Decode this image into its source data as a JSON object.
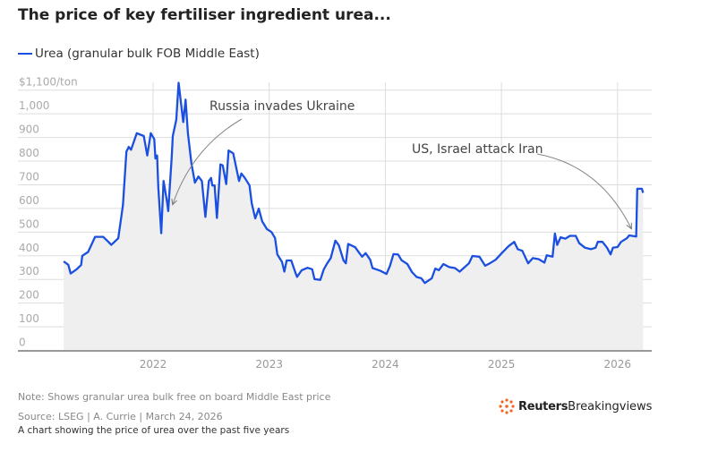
{
  "header": {
    "title": "The price of key fertiliser ingredient urea..."
  },
  "footer": {
    "note": "Note: Shows granular urea bulk free on board Middle East price",
    "source": "Source: LSEG | A. Currie | March 24, 2026",
    "caption": "A chart showing the price of urea over the past five years",
    "logo_bold": "Reuters",
    "logo_light": "Breakingviews"
  },
  "colors": {
    "line": "#1a4fe0",
    "fill": "#efefef",
    "grid": "#dddddd",
    "axis": "#999999",
    "logo": "#f26522"
  },
  "chart_data": {
    "type": "area",
    "title": "The price of key fertiliser ingredient urea...",
    "legend": [
      "Urea (granular bulk FOB Middle East)"
    ],
    "legend_position": "top-left",
    "xlabel": "",
    "ylabel": "$/ton",
    "ylim": [
      0,
      1100
    ],
    "xlim": [
      2021.0,
      2026.3
    ],
    "y_ticks": [
      0,
      100,
      200,
      300,
      400,
      500,
      600,
      700,
      800,
      900,
      1000,
      1100
    ],
    "y_tick_labels": [
      "0",
      "100",
      "200",
      "300",
      "400",
      "500",
      "600",
      "700",
      "800",
      "900",
      "1,000",
      "$1,100/ton"
    ],
    "x_ticks": [
      2022,
      2023,
      2024,
      2025,
      2026
    ],
    "x_tick_labels": [
      "2022",
      "2023",
      "2024",
      "2025",
      "2026"
    ],
    "grid": true,
    "annotations": [
      {
        "text": "Russia invades Ukraine",
        "x": 2022.16,
        "y": 617
      },
      {
        "text": "US, Israel attack Iran",
        "x": 2026.14,
        "y": 500
      }
    ],
    "series": [
      {
        "name": "Urea (granular bulk FOB Middle East)",
        "points": [
          [
            2021.23,
            376
          ],
          [
            2021.27,
            362
          ],
          [
            2021.29,
            325
          ],
          [
            2021.34,
            342
          ],
          [
            2021.38,
            361
          ],
          [
            2021.39,
            400
          ],
          [
            2021.44,
            416
          ],
          [
            2021.47,
            448
          ],
          [
            2021.5,
            480
          ],
          [
            2021.57,
            480
          ],
          [
            2021.61,
            461
          ],
          [
            2021.64,
            446
          ],
          [
            2021.7,
            474
          ],
          [
            2021.74,
            613
          ],
          [
            2021.77,
            840
          ],
          [
            2021.79,
            860
          ],
          [
            2021.81,
            848
          ],
          [
            2021.86,
            918
          ],
          [
            2021.92,
            906
          ],
          [
            2021.95,
            824
          ],
          [
            2021.98,
            918
          ],
          [
            2022.01,
            893
          ],
          [
            2022.02,
            811
          ],
          [
            2022.035,
            824
          ],
          [
            2022.045,
            691
          ],
          [
            2022.07,
            495
          ],
          [
            2022.09,
            716
          ],
          [
            2022.12,
            627
          ],
          [
            2022.13,
            589
          ],
          [
            2022.16,
            817
          ],
          [
            2022.17,
            906
          ],
          [
            2022.2,
            975
          ],
          [
            2022.22,
            1131
          ],
          [
            2022.26,
            965
          ],
          [
            2022.28,
            1060
          ],
          [
            2022.3,
            918
          ],
          [
            2022.33,
            791
          ],
          [
            2022.36,
            709
          ],
          [
            2022.39,
            735
          ],
          [
            2022.42,
            716
          ],
          [
            2022.45,
            564
          ],
          [
            2022.48,
            716
          ],
          [
            2022.5,
            729
          ],
          [
            2022.51,
            697
          ],
          [
            2022.53,
            697
          ],
          [
            2022.55,
            560
          ],
          [
            2022.58,
            786
          ],
          [
            2022.6,
            782
          ],
          [
            2022.63,
            703
          ],
          [
            2022.65,
            845
          ],
          [
            2022.69,
            833
          ],
          [
            2022.74,
            716
          ],
          [
            2022.76,
            748
          ],
          [
            2022.79,
            729
          ],
          [
            2022.83,
            697
          ],
          [
            2022.85,
            621
          ],
          [
            2022.88,
            558
          ],
          [
            2022.91,
            599
          ],
          [
            2022.94,
            545
          ],
          [
            2022.98,
            513
          ],
          [
            2023.02,
            500
          ],
          [
            2023.05,
            475
          ],
          [
            2023.07,
            405
          ],
          [
            2023.11,
            374
          ],
          [
            2023.13,
            333
          ],
          [
            2023.15,
            380
          ],
          [
            2023.19,
            380
          ],
          [
            2023.23,
            323
          ],
          [
            2023.24,
            311
          ],
          [
            2023.28,
            339
          ],
          [
            2023.33,
            349
          ],
          [
            2023.37,
            343
          ],
          [
            2023.39,
            301
          ],
          [
            2023.44,
            298
          ],
          [
            2023.47,
            343
          ],
          [
            2023.5,
            368
          ],
          [
            2023.53,
            390
          ],
          [
            2023.57,
            464
          ],
          [
            2023.6,
            444
          ],
          [
            2023.64,
            380
          ],
          [
            2023.66,
            368
          ],
          [
            2023.68,
            450
          ],
          [
            2023.74,
            436
          ],
          [
            2023.78,
            409
          ],
          [
            2023.8,
            396
          ],
          [
            2023.83,
            411
          ],
          [
            2023.87,
            383
          ],
          [
            2023.89,
            348
          ],
          [
            2023.92,
            343
          ],
          [
            2023.96,
            336
          ],
          [
            2024.01,
            323
          ],
          [
            2024.04,
            358
          ],
          [
            2024.07,
            407
          ],
          [
            2024.11,
            405
          ],
          [
            2024.14,
            381
          ],
          [
            2024.19,
            365
          ],
          [
            2024.23,
            331
          ],
          [
            2024.27,
            310
          ],
          [
            2024.31,
            305
          ],
          [
            2024.34,
            285
          ],
          [
            2024.4,
            305
          ],
          [
            2024.43,
            346
          ],
          [
            2024.46,
            339
          ],
          [
            2024.5,
            365
          ],
          [
            2024.55,
            352
          ],
          [
            2024.6,
            348
          ],
          [
            2024.64,
            333
          ],
          [
            2024.72,
            368
          ],
          [
            2024.75,
            399
          ],
          [
            2024.81,
            396
          ],
          [
            2024.86,
            358
          ],
          [
            2024.9,
            368
          ],
          [
            2024.95,
            383
          ],
          [
            2025.01,
            415
          ],
          [
            2025.06,
            440
          ],
          [
            2025.11,
            459
          ],
          [
            2025.14,
            428
          ],
          [
            2025.18,
            421
          ],
          [
            2025.23,
            368
          ],
          [
            2025.27,
            390
          ],
          [
            2025.32,
            386
          ],
          [
            2025.37,
            371
          ],
          [
            2025.39,
            402
          ],
          [
            2025.44,
            396
          ],
          [
            2025.46,
            494
          ],
          [
            2025.48,
            446
          ],
          [
            2025.51,
            478
          ],
          [
            2025.55,
            472
          ],
          [
            2025.59,
            484
          ],
          [
            2025.64,
            484
          ],
          [
            2025.67,
            453
          ],
          [
            2025.72,
            434
          ],
          [
            2025.77,
            428
          ],
          [
            2025.81,
            434
          ],
          [
            2025.83,
            459
          ],
          [
            2025.87,
            459
          ],
          [
            2025.91,
            434
          ],
          [
            2025.94,
            406
          ],
          [
            2025.96,
            434
          ],
          [
            2026.0,
            437
          ],
          [
            2026.03,
            459
          ],
          [
            2026.08,
            474
          ],
          [
            2026.1,
            486
          ],
          [
            2026.16,
            481
          ],
          [
            2026.17,
            683
          ],
          [
            2026.21,
            683
          ],
          [
            2026.22,
            666
          ]
        ]
      }
    ]
  }
}
